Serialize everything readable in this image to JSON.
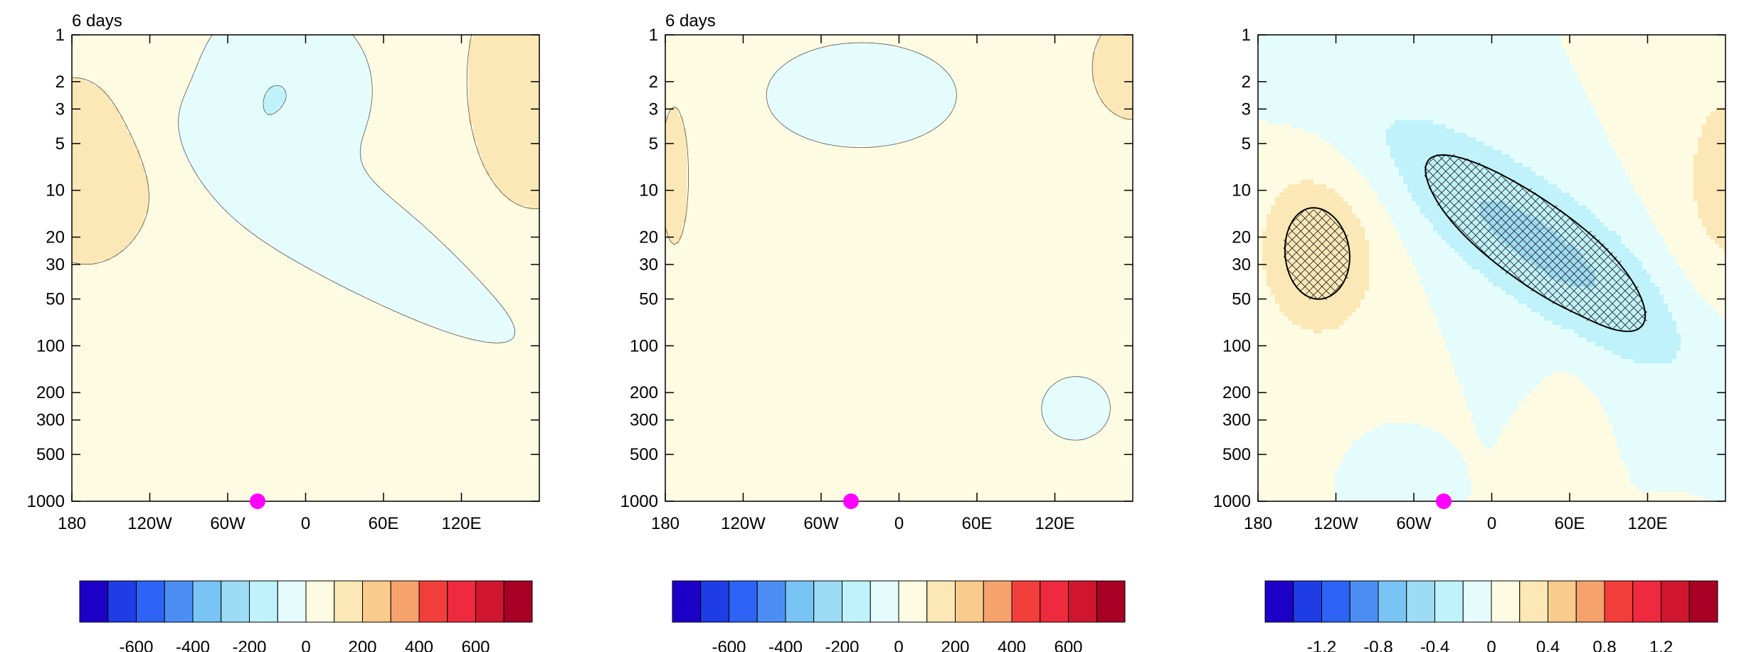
{
  "chart_data": [
    {
      "type": "heatmap",
      "title": "6 days",
      "x_ticks": [
        "180",
        "120W",
        "60W",
        "0",
        "60E",
        "120E"
      ],
      "x_tick_lon": [
        -180,
        -120,
        -60,
        0,
        60,
        120
      ],
      "xlim": [
        -180,
        180
      ],
      "y_ticks": [
        "1",
        "2",
        "3",
        "5",
        "10",
        "20",
        "30",
        "50",
        "100",
        "200",
        "300",
        "500",
        "1000"
      ],
      "y_tick_values": [
        1,
        2,
        3,
        5,
        10,
        20,
        30,
        50,
        100,
        200,
        300,
        500,
        1000
      ],
      "ylim": [
        1,
        1000
      ],
      "y_scale": "log",
      "marker": {
        "lon": -37,
        "p": 1000,
        "color": "#ff00ff"
      },
      "colorbar": {
        "levels": [
          -600,
          -400,
          -200,
          0,
          200,
          400,
          600
        ],
        "labels": [
          "-600",
          "-400",
          "-200",
          "0",
          "200",
          "400",
          "600"
        ],
        "colors": [
          "#1c00c8",
          "#1f3de6",
          "#2e64f5",
          "#4d8ef5",
          "#78c5f5",
          "#9cdcf5",
          "#bff2fa",
          "#e5fcfd",
          "#fefbe3",
          "#fce8b6",
          "#f9cc8c",
          "#f6a26c",
          "#f23e3a",
          "#f02a3e",
          "#d0162e",
          "#a60025"
        ]
      },
      "scale": 200,
      "hatch": false
    },
    {
      "type": "heatmap",
      "title": "6 days",
      "x_ticks": [
        "180",
        "120W",
        "60W",
        "0",
        "60E",
        "120E"
      ],
      "x_tick_lon": [
        -180,
        -120,
        -60,
        0,
        60,
        120
      ],
      "xlim": [
        -180,
        180
      ],
      "y_ticks": [
        "1",
        "2",
        "3",
        "5",
        "10",
        "20",
        "30",
        "50",
        "100",
        "200",
        "300",
        "500",
        "1000"
      ],
      "y_tick_values": [
        1,
        2,
        3,
        5,
        10,
        20,
        30,
        50,
        100,
        200,
        300,
        500,
        1000
      ],
      "ylim": [
        1,
        1000
      ],
      "y_scale": "log",
      "marker": {
        "lon": -37,
        "p": 1000,
        "color": "#ff00ff"
      },
      "colorbar": {
        "levels": [
          -600,
          -400,
          -200,
          0,
          200,
          400,
          600
        ],
        "labels": [
          "-600",
          "-400",
          "-200",
          "0",
          "200",
          "400",
          "600"
        ],
        "colors": [
          "#1c00c8",
          "#1f3de6",
          "#2e64f5",
          "#4d8ef5",
          "#78c5f5",
          "#9cdcf5",
          "#bff2fa",
          "#e5fcfd",
          "#fefbe3",
          "#fce8b6",
          "#f9cc8c",
          "#f6a26c",
          "#f23e3a",
          "#f02a3e",
          "#d0162e",
          "#a60025"
        ]
      },
      "scale": 200,
      "hatch": false
    },
    {
      "type": "heatmap",
      "title": "",
      "x_ticks": [
        "180",
        "120W",
        "60W",
        "0",
        "60E",
        "120E"
      ],
      "x_tick_lon": [
        -180,
        -120,
        -60,
        0,
        60,
        120
      ],
      "xlim": [
        -180,
        180
      ],
      "y_ticks": [
        "1",
        "2",
        "3",
        "5",
        "10",
        "20",
        "30",
        "50",
        "100",
        "200",
        "300",
        "500",
        "1000"
      ],
      "y_tick_values": [
        1,
        2,
        3,
        5,
        10,
        20,
        30,
        50,
        100,
        200,
        300,
        500,
        1000
      ],
      "ylim": [
        1,
        1000
      ],
      "y_scale": "log",
      "marker": {
        "lon": -37,
        "p": 1000,
        "color": "#ff00ff"
      },
      "colorbar": {
        "levels": [
          -1.2,
          -0.8,
          -0.4,
          0,
          0.4,
          0.8,
          1.2
        ],
        "labels": [
          "-1.2",
          "-0.8",
          "-0.4",
          "0",
          "0.4",
          "0.8",
          "1.2"
        ],
        "colors": [
          "#1c00c8",
          "#1f3de6",
          "#2e64f5",
          "#4d8ef5",
          "#78c5f5",
          "#9cdcf5",
          "#bff2fa",
          "#e5fcfd",
          "#fefbe3",
          "#fce8b6",
          "#f9cc8c",
          "#f6a26c",
          "#f23e3a",
          "#f02a3e",
          "#d0162e",
          "#a60025"
        ]
      },
      "scale": 0.2,
      "hatch": true
    }
  ]
}
